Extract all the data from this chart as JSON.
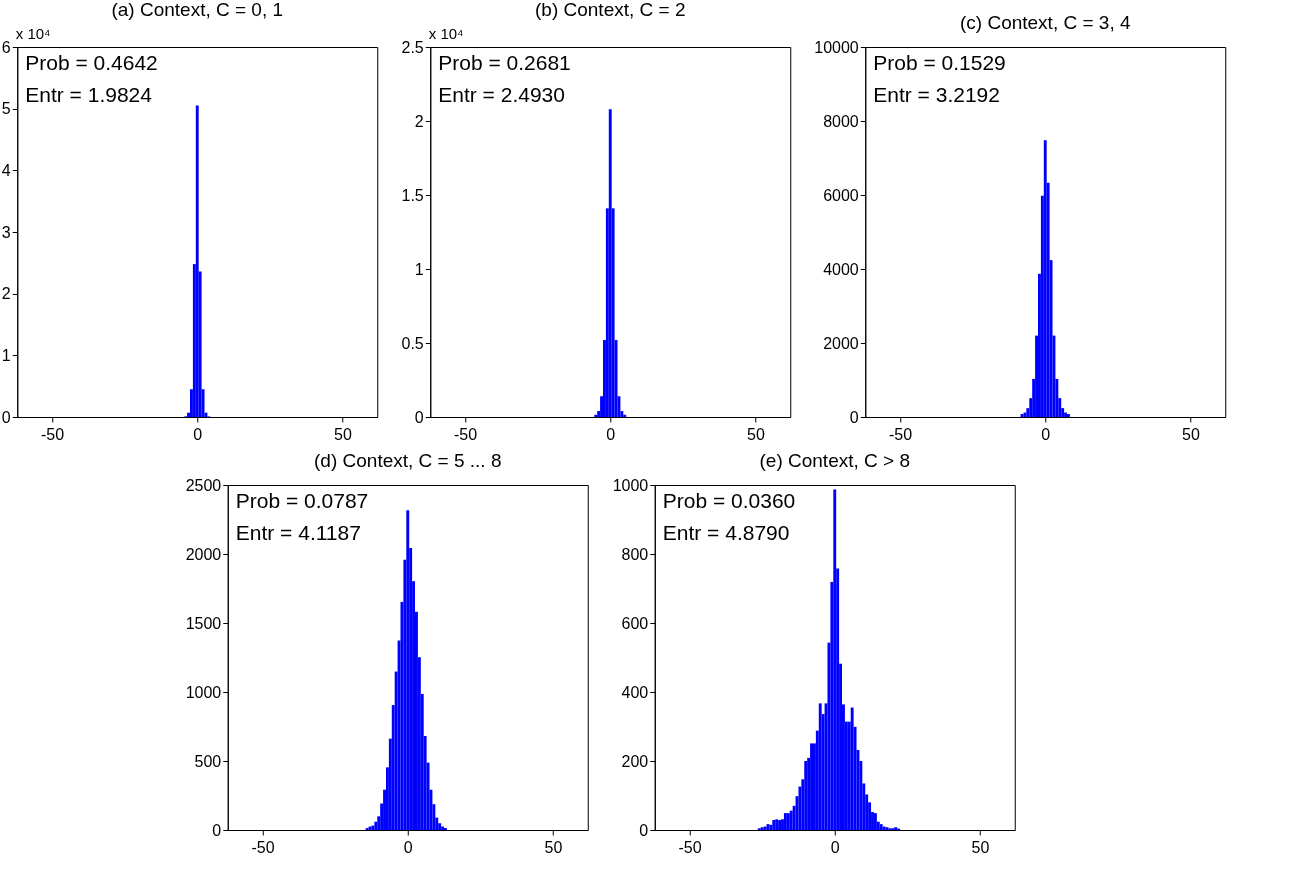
{
  "chart_data": [
    {
      "type": "histogram",
      "title": "(a) Context, C = 0, 1",
      "ylabel": "x 10⁴",
      "color": "#0000ff",
      "xlim": [
        -62,
        62
      ],
      "xticks": [
        -50,
        0,
        50
      ],
      "ylim": [
        0,
        6
      ],
      "yticks": [
        0,
        1,
        2,
        3,
        4,
        5,
        6
      ],
      "bins": [
        -4.5,
        -3.5,
        -2.5,
        -1.5,
        -0.5,
        0.5,
        1.5,
        2.5,
        3.5,
        4.5
      ],
      "values": [
        0.01,
        0.07,
        0.45,
        2.48,
        5.05,
        2.36,
        0.45,
        0.07,
        0.01
      ],
      "annotations": [
        "Prob = 0.4642",
        "Entr = 1.9824"
      ]
    },
    {
      "type": "histogram",
      "title": "(b) Context, C = 2",
      "ylabel": "x 10⁴",
      "color": "#0000ff",
      "xlim": [
        -62,
        62
      ],
      "xticks": [
        -50,
        0,
        50
      ],
      "ylim": [
        0,
        2.5
      ],
      "yticks": [
        0,
        0.5,
        1,
        1.5,
        2,
        2.5
      ],
      "bins": [
        -5.5,
        -4.5,
        -3.5,
        -2.5,
        -1.5,
        -0.5,
        0.5,
        1.5,
        2.5,
        3.5,
        4.5,
        5.5
      ],
      "values": [
        0.015,
        0.04,
        0.14,
        0.52,
        1.41,
        2.08,
        1.41,
        0.52,
        0.14,
        0.04,
        0.015
      ],
      "annotations": [
        "Prob = 0.2681",
        "Entr = 2.4930"
      ]
    },
    {
      "type": "histogram",
      "title": "(c) Context, C = 3, 4",
      "color": "#0000ff",
      "xlim": [
        -62,
        62
      ],
      "xticks": [
        -50,
        0,
        50
      ],
      "ylim": [
        0,
        10000
      ],
      "yticks": [
        0,
        2000,
        4000,
        6000,
        8000,
        10000
      ],
      "bins": [
        -8.5,
        -7.5,
        -6.5,
        -5.5,
        -4.5,
        -3.5,
        -2.5,
        -1.5,
        -0.5,
        0.5,
        1.5,
        2.5,
        3.5,
        4.5,
        5.5,
        6.5,
        7.5,
        8.5
      ],
      "values": [
        80,
        120,
        240,
        510,
        1030,
        2200,
        3870,
        5980,
        7480,
        6330,
        4240,
        2200,
        1030,
        510,
        240,
        120,
        80
      ],
      "annotations": [
        "Prob = 0.1529",
        "Entr = 3.2192"
      ]
    },
    {
      "type": "histogram",
      "title": "(d) Context, C = 5 ... 8",
      "color": "#0000ff",
      "xlim": [
        -62,
        62
      ],
      "xticks": [
        -50,
        0,
        50
      ],
      "ylim": [
        0,
        2500
      ],
      "yticks": [
        0,
        500,
        1000,
        1500,
        2000,
        2500
      ],
      "bins": [
        -14.5,
        -13.5,
        -12.5,
        -11.5,
        -10.5,
        -9.5,
        -8.5,
        -7.5,
        -6.5,
        -5.5,
        -4.5,
        -3.5,
        -2.5,
        -1.5,
        -0.5,
        0.5,
        1.5,
        2.5,
        3.5,
        4.5,
        5.5,
        6.5,
        7.5,
        8.5,
        9.5,
        10.5,
        11.5,
        12.5,
        13.5
      ],
      "values": [
        14,
        25,
        32,
        60,
        99,
        192,
        292,
        454,
        662,
        905,
        1148,
        1373,
        1653,
        1958,
        2317,
        2044,
        1803,
        1581,
        1252,
        986,
        681,
        488,
        292,
        187,
        90,
        49,
        25,
        14
      ],
      "annotations": [
        "Prob = 0.0787",
        "Entr = 4.1187"
      ]
    },
    {
      "type": "histogram",
      "title": "(e) Context, C > 8",
      "color": "#0000ff",
      "xlim": [
        -62,
        62
      ],
      "xticks": [
        -50,
        0,
        50
      ],
      "ylim": [
        0,
        1000
      ],
      "yticks": [
        0,
        200,
        400,
        600,
        800,
        1000
      ],
      "bins": [
        -26.5,
        -25.5,
        -24.5,
        -23.5,
        -22.5,
        -21.5,
        -20.5,
        -19.5,
        -18.5,
        -17.5,
        -16.5,
        -15.5,
        -14.5,
        -13.5,
        -12.5,
        -11.5,
        -10.5,
        -9.5,
        -8.5,
        -7.5,
        -6.5,
        -5.5,
        -4.5,
        -3.5,
        -2.5,
        -1.5,
        -0.5,
        0.5,
        1.5,
        2.5,
        3.5,
        4.5,
        5.5,
        6.5,
        7.5,
        8.5,
        9.5,
        10.5,
        11.5,
        12.5,
        13.5,
        14.5,
        15.5,
        16.5,
        17.5,
        18.5,
        19.5,
        20.5,
        21.5,
        22.5
      ],
      "values": [
        5,
        8,
        10,
        17,
        15,
        29,
        31,
        29,
        31,
        49,
        49,
        56,
        70,
        98,
        126,
        147,
        200,
        209,
        251,
        251,
        288,
        367,
        336,
        367,
        543,
        719,
        987,
        758,
        482,
        364,
        314,
        314,
        355,
        299,
        232,
        200,
        135,
        103,
        80,
        52,
        49,
        24,
        17,
        10,
        8,
        5,
        5,
        8,
        4
      ],
      "annotations": [
        "Prob = 0.0360",
        "Entr = 4.8790"
      ]
    }
  ]
}
